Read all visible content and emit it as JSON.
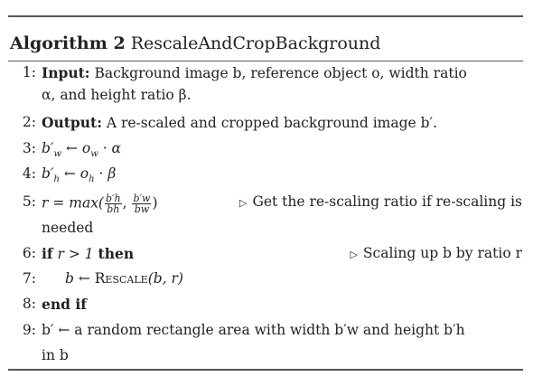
{
  "algorithm": {
    "number_label": "Algorithm 2",
    "name": "RescaleAndCropBackground"
  },
  "lines": {
    "l1": {
      "num": "1:",
      "kw": "Input:",
      "text": " Background image b, reference object o, width ratio",
      "cont": "α, and height ratio β."
    },
    "l2": {
      "num": "2:",
      "kw": "Output:",
      "text": " A re-scaled and cropped background image b′."
    },
    "l3": {
      "num": "3:",
      "lhs": "b′",
      "lhs_sub": "w",
      "arrow": " ← ",
      "rhs": "o",
      "rhs_sub": "w",
      "rest": " · α"
    },
    "l4": {
      "num": "4:",
      "lhs": "b′",
      "lhs_sub": "h",
      "arrow": " ← ",
      "rhs": "o",
      "rhs_sub": "h",
      "rest": " · β"
    },
    "l5": {
      "num": "5:",
      "expr": "r = max(",
      "f1_num": "b′h",
      "f1_den": "bh",
      "sep": ", ",
      "f2_num": "b′w",
      "f2_den": "bw",
      "close": ")",
      "comment": "Get the re-scaling ratio if re-scaling is",
      "comment_cont": "needed"
    },
    "l6": {
      "num": "6:",
      "kw_if": "if",
      "cond": " r > 1 ",
      "kw_then": "then",
      "comment": "Scaling up b by ratio r"
    },
    "l7": {
      "num": "7:",
      "text": "b ← ",
      "func": "Rescale",
      "args": "(b, r)"
    },
    "l8": {
      "num": "8:",
      "kw": "end if"
    },
    "l9": {
      "num": "9:",
      "text": "b′ ← a random rectangle area with width b′w and height b′h",
      "cont": "in b"
    }
  },
  "symbols": {
    "comment_marker": "▷"
  }
}
